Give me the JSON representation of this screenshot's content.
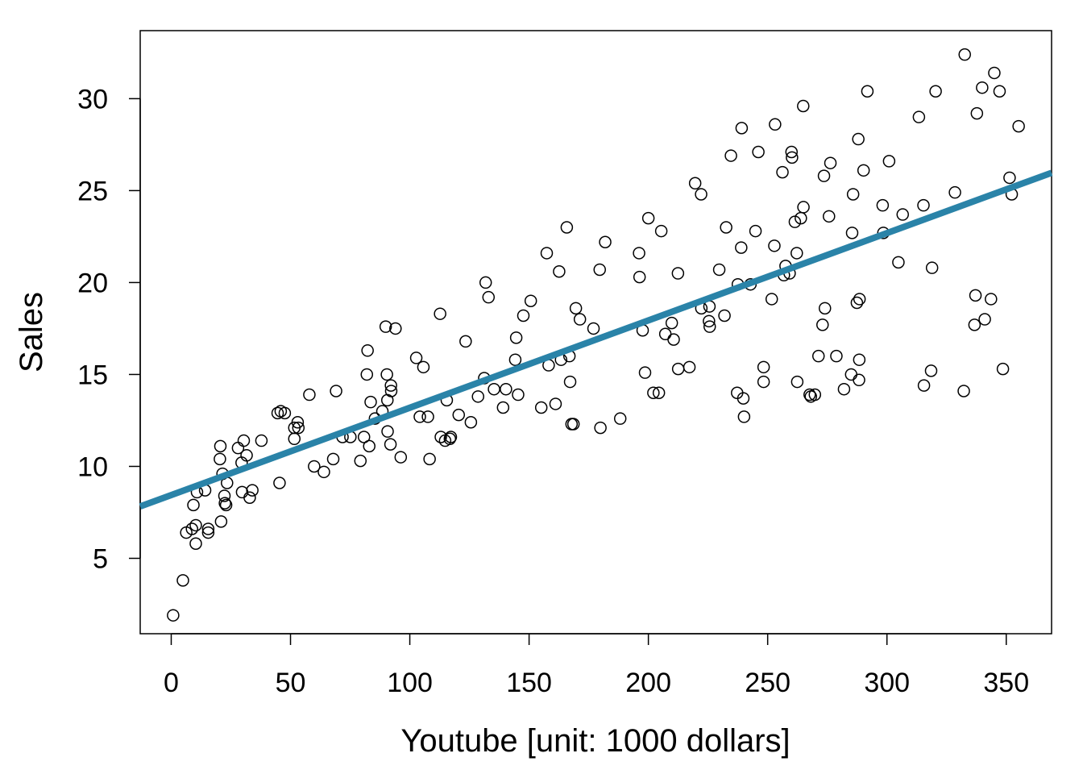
{
  "chart_data": {
    "type": "scatter",
    "xlabel": "Youtube [unit: 1000 dollars]",
    "ylabel": "Sales",
    "xlim": [
      -13,
      369
    ],
    "ylim": [
      0.9,
      33.7
    ],
    "xticks": [
      0,
      50,
      100,
      150,
      200,
      250,
      300,
      350
    ],
    "yticks": [
      5,
      10,
      15,
      20,
      25,
      30
    ],
    "grid": false,
    "legend": "none",
    "colors": {
      "points": "#000000",
      "fit_line": "#2a83a8"
    },
    "fit_line": {
      "intercept": 8.44,
      "slope": 0.0475
    },
    "points": [
      [
        0.8,
        1.9
      ],
      [
        4.9,
        3.8
      ],
      [
        6.3,
        6.4
      ],
      [
        8.7,
        6.6
      ],
      [
        9.3,
        7.9
      ],
      [
        10.3,
        6.8
      ],
      [
        10.3,
        5.8
      ],
      [
        10.8,
        8.6
      ],
      [
        14.2,
        8.7
      ],
      [
        15.5,
        6.6
      ],
      [
        15.5,
        6.4
      ],
      [
        20.4,
        10.4
      ],
      [
        20.6,
        11.1
      ],
      [
        20.9,
        7.0
      ],
      [
        21.5,
        9.6
      ],
      [
        22.3,
        8.4
      ],
      [
        22.5,
        8.0
      ],
      [
        23.0,
        7.9
      ],
      [
        23.4,
        9.1
      ],
      [
        28.0,
        11.0
      ],
      [
        29.5,
        10.2
      ],
      [
        29.7,
        8.6
      ],
      [
        30.4,
        11.4
      ],
      [
        31.6,
        10.6
      ],
      [
        32.9,
        8.3
      ],
      [
        34.0,
        8.7
      ],
      [
        37.8,
        11.4
      ],
      [
        44.6,
        12.9
      ],
      [
        45.4,
        9.1
      ],
      [
        45.9,
        13.0
      ],
      [
        47.6,
        12.9
      ],
      [
        51.6,
        12.1
      ],
      [
        51.6,
        11.5
      ],
      [
        53.0,
        12.4
      ],
      [
        53.3,
        12.1
      ],
      [
        57.9,
        13.9
      ],
      [
        59.9,
        10.0
      ],
      [
        64.0,
        9.7
      ],
      [
        67.9,
        10.4
      ],
      [
        69.1,
        14.1
      ],
      [
        71.8,
        11.6
      ],
      [
        75.1,
        11.6
      ],
      [
        79.3,
        10.3
      ],
      [
        80.8,
        11.6
      ],
      [
        82.0,
        15.0
      ],
      [
        82.3,
        16.3
      ],
      [
        83.0,
        11.1
      ],
      [
        83.6,
        13.5
      ],
      [
        85.4,
        12.6
      ],
      [
        88.5,
        13.0
      ],
      [
        89.9,
        17.6
      ],
      [
        90.4,
        15.0
      ],
      [
        90.6,
        13.6
      ],
      [
        90.7,
        11.9
      ],
      [
        91.9,
        11.2
      ],
      [
        92.1,
        14.4
      ],
      [
        92.2,
        14.1
      ],
      [
        94.0,
        17.5
      ],
      [
        96.2,
        10.5
      ],
      [
        102.7,
        15.9
      ],
      [
        104.2,
        12.7
      ],
      [
        105.7,
        15.4
      ],
      [
        107.6,
        12.7
      ],
      [
        108.3,
        10.4
      ],
      [
        112.7,
        18.3
      ],
      [
        113.0,
        11.6
      ],
      [
        114.8,
        11.4
      ],
      [
        115.5,
        13.6
      ],
      [
        116.8,
        11.5
      ],
      [
        117.2,
        11.6
      ],
      [
        120.5,
        12.8
      ],
      [
        123.4,
        16.8
      ],
      [
        125.6,
        12.4
      ],
      [
        128.6,
        13.8
      ],
      [
        131.2,
        14.8
      ],
      [
        131.8,
        20.0
      ],
      [
        133.0,
        19.2
      ],
      [
        135.3,
        14.2
      ],
      [
        139.1,
        13.2
      ],
      [
        140.3,
        14.2
      ],
      [
        144.2,
        15.8
      ],
      [
        144.6,
        17.0
      ],
      [
        145.4,
        13.9
      ],
      [
        147.6,
        18.2
      ],
      [
        150.7,
        19.0
      ],
      [
        155.1,
        13.2
      ],
      [
        157.4,
        21.6
      ],
      [
        158.2,
        15.5
      ],
      [
        161.1,
        13.4
      ],
      [
        162.6,
        20.6
      ],
      [
        163.4,
        15.8
      ],
      [
        165.8,
        23.0
      ],
      [
        166.9,
        16.0
      ],
      [
        167.2,
        14.6
      ],
      [
        167.8,
        12.3
      ],
      [
        168.6,
        12.3
      ],
      [
        169.6,
        18.6
      ],
      [
        171.3,
        18.0
      ],
      [
        177.0,
        17.5
      ],
      [
        179.6,
        20.7
      ],
      [
        179.9,
        12.1
      ],
      [
        181.9,
        22.2
      ],
      [
        188.2,
        12.6
      ],
      [
        196.1,
        21.6
      ],
      [
        196.3,
        20.3
      ],
      [
        197.6,
        17.4
      ],
      [
        198.6,
        15.1
      ],
      [
        200.0,
        23.5
      ],
      [
        202.1,
        14.0
      ],
      [
        204.4,
        14.0
      ],
      [
        205.4,
        22.8
      ],
      [
        207.1,
        17.2
      ],
      [
        209.8,
        17.8
      ],
      [
        210.6,
        16.9
      ],
      [
        212.4,
        20.5
      ],
      [
        212.5,
        15.3
      ],
      [
        217.2,
        15.4
      ],
      [
        219.6,
        25.4
      ],
      [
        222.1,
        24.8
      ],
      [
        222.2,
        18.6
      ],
      [
        225.4,
        17.9
      ],
      [
        225.6,
        18.7
      ],
      [
        225.7,
        17.6
      ],
      [
        229.7,
        20.7
      ],
      [
        231.9,
        18.2
      ],
      [
        232.6,
        23.0
      ],
      [
        234.6,
        26.9
      ],
      [
        237.2,
        14.0
      ],
      [
        237.5,
        19.9
      ],
      [
        238.9,
        21.9
      ],
      [
        239.1,
        28.4
      ],
      [
        239.8,
        13.7
      ],
      [
        240.1,
        12.7
      ],
      [
        242.8,
        19.9
      ],
      [
        244.9,
        22.8
      ],
      [
        246.1,
        27.1
      ],
      [
        248.3,
        15.4
      ],
      [
        248.3,
        14.6
      ],
      [
        251.7,
        19.1
      ],
      [
        252.8,
        22.0
      ],
      [
        253.1,
        28.6
      ],
      [
        256.2,
        26.0
      ],
      [
        256.8,
        20.4
      ],
      [
        257.5,
        20.9
      ],
      [
        259.2,
        20.5
      ],
      [
        260.0,
        27.1
      ],
      [
        260.2,
        26.8
      ],
      [
        261.4,
        23.3
      ],
      [
        262.2,
        21.6
      ],
      [
        262.4,
        14.6
      ],
      [
        263.9,
        23.5
      ],
      [
        264.9,
        29.6
      ],
      [
        265.0,
        24.1
      ],
      [
        267.6,
        13.9
      ],
      [
        268.1,
        13.8
      ],
      [
        269.8,
        13.9
      ],
      [
        271.3,
        16.0
      ],
      [
        273.0,
        17.7
      ],
      [
        273.6,
        25.8
      ],
      [
        274.0,
        18.6
      ],
      [
        275.7,
        23.6
      ],
      [
        276.3,
        26.5
      ],
      [
        278.8,
        16.0
      ],
      [
        282.0,
        14.2
      ],
      [
        285.0,
        15.0
      ],
      [
        285.4,
        22.7
      ],
      [
        285.8,
        24.8
      ],
      [
        287.4,
        18.9
      ],
      [
        288.0,
        27.8
      ],
      [
        288.3,
        14.7
      ],
      [
        288.4,
        15.8
      ],
      [
        288.5,
        19.1
      ],
      [
        290.2,
        26.1
      ],
      [
        291.8,
        30.4
      ],
      [
        298.2,
        24.2
      ],
      [
        298.5,
        22.7
      ],
      [
        300.9,
        26.6
      ],
      [
        304.8,
        21.1
      ],
      [
        306.6,
        23.7
      ],
      [
        313.4,
        29.0
      ],
      [
        315.3,
        24.2
      ],
      [
        315.5,
        14.4
      ],
      [
        318.5,
        15.2
      ],
      [
        318.9,
        20.8
      ],
      [
        320.4,
        30.4
      ],
      [
        328.5,
        24.9
      ],
      [
        332.2,
        14.1
      ],
      [
        332.6,
        32.4
      ],
      [
        336.7,
        17.7
      ],
      [
        337.1,
        19.3
      ],
      [
        337.7,
        29.2
      ],
      [
        339.9,
        30.6
      ],
      [
        341.0,
        18.0
      ],
      [
        343.6,
        19.1
      ],
      [
        345.0,
        31.4
      ],
      [
        347.2,
        30.4
      ],
      [
        348.6,
        15.3
      ],
      [
        351.4,
        25.7
      ],
      [
        352.3,
        24.8
      ],
      [
        355.2,
        28.5
      ]
    ]
  }
}
